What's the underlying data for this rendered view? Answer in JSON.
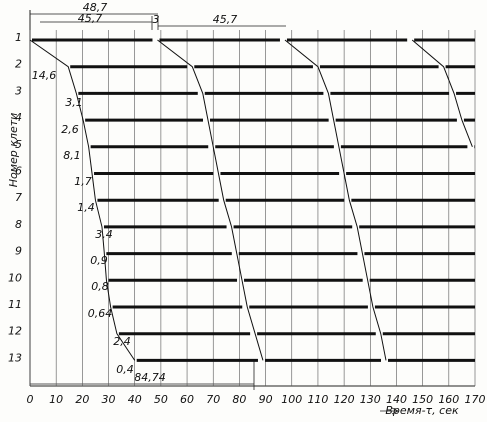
{
  "chart_data": {
    "type": "schedule",
    "y_label": "Номер клети",
    "x_label": "Время-τ, сек",
    "categories": [
      "1",
      "2",
      "3",
      "4",
      "5",
      "6",
      "7",
      "8",
      "9",
      "10",
      "11",
      "12",
      "13"
    ],
    "series": [
      {
        "values": [
          0,
          14.6,
          17.7,
          20.3,
          22.4,
          23.7,
          25.0,
          27.5,
          28.4,
          29.2,
          30.8,
          33.2,
          40
        ]
      },
      {
        "values": [
          48.7,
          62,
          66,
          68,
          70,
          72,
          74,
          77,
          79,
          81,
          83,
          86,
          89
        ]
      },
      {
        "values": [
          97.4,
          110,
          114,
          116,
          118,
          120,
          122,
          125,
          127,
          129,
          131,
          134,
          136
        ]
      },
      {
        "values": [
          146,
          158,
          162,
          165,
          169,
          null,
          null,
          null,
          null,
          null,
          null,
          null,
          null
        ]
      }
    ],
    "color": "#111111",
    "xlim": [
      0,
      170
    ],
    "xticks": [
      0,
      10,
      20,
      30,
      40,
      50,
      60,
      70,
      80,
      90,
      100,
      110,
      120,
      130,
      140,
      150,
      160,
      170
    ],
    "grid": true,
    "annotations": [
      "48,7",
      "45,7",
      "3",
      "45,7",
      "14,6",
      "3,1",
      "2,6",
      "8,1",
      "1,7",
      "1,4",
      "3,4",
      "0,9",
      "0,8",
      "0,64",
      "2,4",
      "0,4",
      "84,74"
    ]
  }
}
